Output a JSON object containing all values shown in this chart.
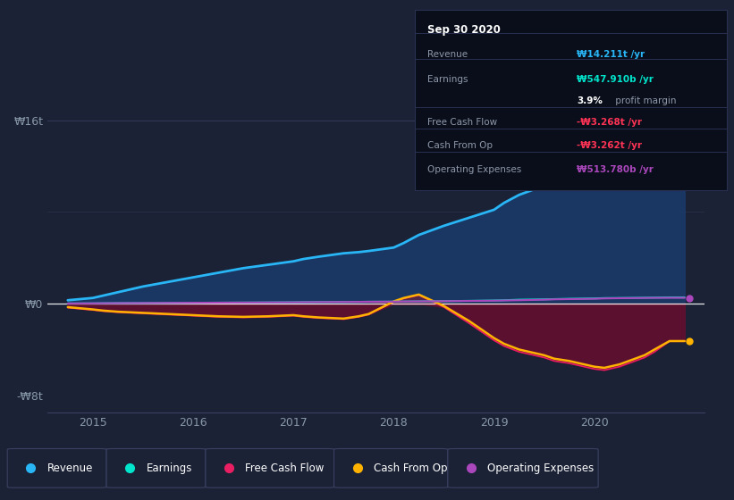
{
  "bg_color": "#1b2236",
  "plot_bg": "#1b2236",
  "years": [
    2014.75,
    2015.0,
    2015.1,
    2015.25,
    2015.5,
    2015.75,
    2016.0,
    2016.25,
    2016.5,
    2016.75,
    2017.0,
    2017.1,
    2017.25,
    2017.5,
    2017.65,
    2017.75,
    2018.0,
    2018.1,
    2018.25,
    2018.5,
    2018.75,
    2019.0,
    2019.1,
    2019.25,
    2019.5,
    2019.6,
    2019.75,
    2020.0,
    2020.1,
    2020.25,
    2020.5,
    2020.6,
    2020.75,
    2020.9
  ],
  "revenue": [
    0.3,
    0.5,
    0.7,
    1.0,
    1.5,
    1.9,
    2.3,
    2.7,
    3.1,
    3.4,
    3.7,
    3.9,
    4.1,
    4.4,
    4.5,
    4.6,
    4.9,
    5.3,
    6.0,
    6.8,
    7.5,
    8.2,
    8.8,
    9.5,
    10.3,
    10.8,
    11.5,
    12.5,
    12.8,
    13.2,
    13.8,
    14.0,
    14.211,
    14.211
  ],
  "earnings": [
    0.02,
    0.03,
    0.04,
    0.05,
    0.06,
    0.07,
    0.08,
    0.09,
    0.1,
    0.11,
    0.12,
    0.13,
    0.14,
    0.15,
    0.16,
    0.17,
    0.18,
    0.19,
    0.2,
    0.22,
    0.25,
    0.28,
    0.3,
    0.35,
    0.38,
    0.4,
    0.43,
    0.46,
    0.49,
    0.5,
    0.52,
    0.53,
    0.548,
    0.548
  ],
  "cash_from_op": [
    -0.3,
    -0.5,
    -0.6,
    -0.7,
    -0.8,
    -0.9,
    -1.0,
    -1.1,
    -1.15,
    -1.1,
    -1.0,
    -1.1,
    -1.2,
    -1.3,
    -1.1,
    -0.9,
    0.2,
    0.5,
    0.8,
    -0.2,
    -1.5,
    -3.0,
    -3.5,
    -4.0,
    -4.5,
    -4.8,
    -5.0,
    -5.5,
    -5.6,
    -5.3,
    -4.5,
    -4.0,
    -3.262,
    -3.262
  ],
  "free_cash_flow": [
    -0.35,
    -0.55,
    -0.65,
    -0.75,
    -0.85,
    -0.95,
    -1.05,
    -1.15,
    -1.2,
    -1.15,
    -1.05,
    -1.15,
    -1.25,
    -1.35,
    -1.15,
    -0.95,
    0.15,
    0.45,
    0.75,
    -0.3,
    -1.7,
    -3.2,
    -3.7,
    -4.2,
    -4.7,
    -5.0,
    -5.2,
    -5.7,
    -5.8,
    -5.5,
    -4.7,
    -4.2,
    -3.268,
    -3.268
  ],
  "operating_expenses": [
    0.02,
    0.03,
    0.04,
    0.05,
    0.06,
    0.07,
    0.08,
    0.09,
    0.1,
    0.11,
    0.12,
    0.13,
    0.14,
    0.15,
    0.16,
    0.17,
    0.18,
    0.19,
    0.2,
    0.22,
    0.24,
    0.26,
    0.28,
    0.3,
    0.35,
    0.38,
    0.4,
    0.43,
    0.46,
    0.48,
    0.5,
    0.51,
    0.514,
    0.514
  ],
  "revenue_color": "#29b6f6",
  "earnings_color": "#00e5cc",
  "fcf_color": "#e91e63",
  "cashop_color": "#ffb300",
  "opex_color": "#ab47bc",
  "fill_revenue_color": "#1a3a6b",
  "fill_neg_color": "#5a1030",
  "fill_neg_color2": "#7a1530",
  "ylim_min": -9.5,
  "ylim_max": 18.0,
  "ytick_vals": [
    -8,
    0,
    16
  ],
  "ytick_labels": [
    "-₩8t",
    "₩0",
    "₩16t"
  ],
  "xlim_min": 2014.55,
  "xlim_max": 2021.1,
  "xtick_years": [
    2015,
    2016,
    2017,
    2018,
    2019,
    2020
  ],
  "legend_items": [
    "Revenue",
    "Earnings",
    "Free Cash Flow",
    "Cash From Op",
    "Operating Expenses"
  ],
  "legend_colors": [
    "#29b6f6",
    "#00e5cc",
    "#e91e63",
    "#ffb300",
    "#ab47bc"
  ],
  "info_box": {
    "date": "Sep 30 2020",
    "revenue_label": "Revenue",
    "revenue_val": "₩14.211t /yr",
    "earnings_label": "Earnings",
    "earnings_val": "₩547.910b /yr",
    "profit_margin": "3.9% profit margin",
    "fcf_label": "Free Cash Flow",
    "fcf_val": "-₩3.268t /yr",
    "cashop_label": "Cash From Op",
    "cashop_val": "-₩3.262t /yr",
    "opex_label": "Operating Expenses",
    "opex_val": "₩513.780b /yr"
  }
}
